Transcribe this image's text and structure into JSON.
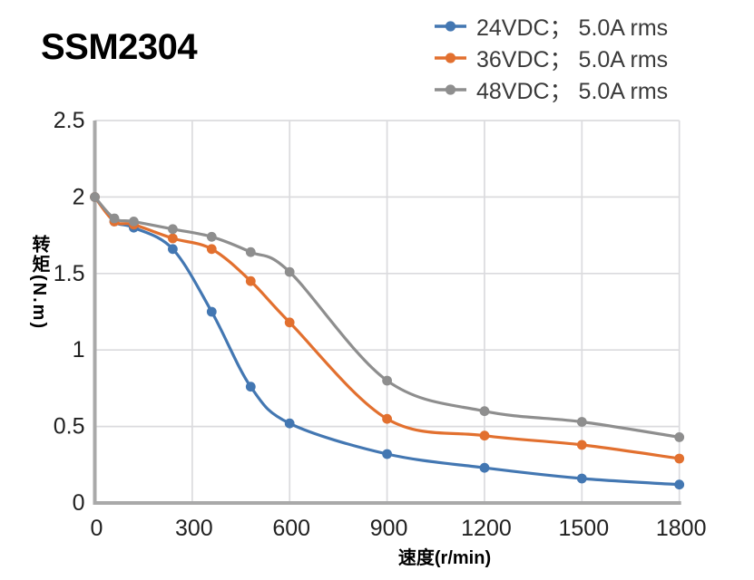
{
  "chart_data": {
    "type": "line",
    "title": "SSM2304",
    "xlabel": "速度(r/min)",
    "ylabel": "转矩(N.m)",
    "xlim": [
      0,
      1840
    ],
    "ylim": [
      0,
      2.5
    ],
    "x_ticks": [
      0,
      300,
      600,
      900,
      1200,
      1500,
      1800
    ],
    "y_ticks": [
      0,
      0.5,
      1,
      1.5,
      2,
      2.5
    ],
    "grid": true,
    "legend_position": "top-right",
    "marker": "circle",
    "line_style": "smooth",
    "x": [
      0,
      60,
      120,
      240,
      360,
      480,
      600,
      900,
      1200,
      1500,
      1800
    ],
    "series": [
      {
        "key": "24vdc",
        "name": "24VDC； 5.0A rms",
        "color": "#4377B2",
        "values": [
          2.0,
          1.84,
          1.8,
          1.66,
          1.25,
          0.76,
          0.52,
          0.32,
          0.23,
          0.16,
          0.12
        ]
      },
      {
        "key": "36vdc",
        "name": "36VDC； 5.0A rms",
        "color": "#E2702F",
        "values": [
          2.0,
          1.84,
          1.82,
          1.73,
          1.66,
          1.45,
          1.18,
          0.55,
          0.44,
          0.38,
          0.29
        ]
      },
      {
        "key": "48vdc",
        "name": "48VDC； 5.0A rms",
        "color": "#8E8E8E",
        "values": [
          2.0,
          1.86,
          1.84,
          1.79,
          1.74,
          1.64,
          1.51,
          0.8,
          0.6,
          0.53,
          0.43
        ]
      }
    ]
  },
  "colors": {
    "background": "#FFFFFF",
    "axis": "#A9A9A9",
    "grid": "#DBDBDE",
    "tick_text": "#212121",
    "legend_text": "#3A3A3A",
    "title_text": "#000000"
  }
}
